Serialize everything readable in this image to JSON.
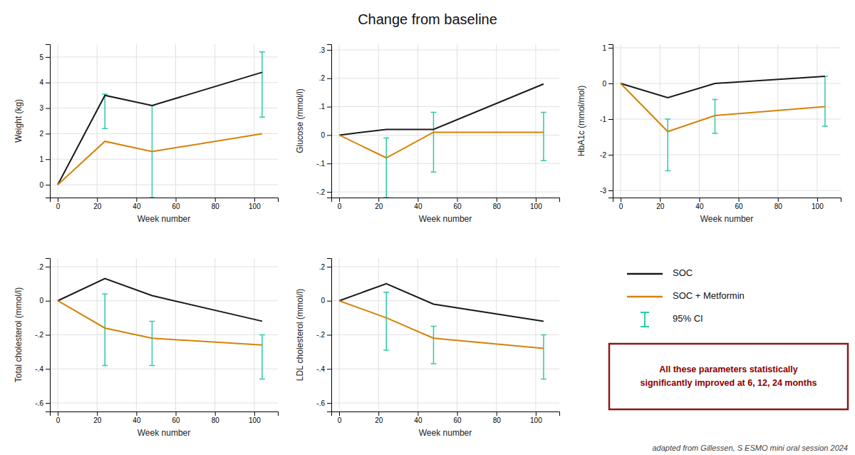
{
  "title": "Change from baseline",
  "legend": "lower right",
  "annotations": [
    "All these parameters statistically\nsignificantly improved at 6, 12, 24 months",
    "adapted from Gillessen, S ESMO mini oral session 2024"
  ],
  "chart_data": [
    {
      "type": "line",
      "y_label": "Weight (kg)",
      "x_label": "Week number",
      "x": [
        0,
        24,
        48,
        104
      ],
      "xlim": [
        -4,
        112
      ],
      "xticks": [
        0,
        20,
        40,
        60,
        80,
        100
      ],
      "ylim": [
        -0.5,
        5.5
      ],
      "yticks": [
        0,
        1,
        2,
        3,
        4,
        5
      ],
      "grid": true,
      "series": [
        {
          "name": "SOC",
          "color": "#1a1a1a",
          "values": [
            0.0,
            3.5,
            3.1,
            4.4
          ]
        },
        {
          "name": "SOC + Metformin",
          "color": "#d4820a",
          "values": [
            0.0,
            1.7,
            1.3,
            2.0
          ]
        },
        {
          "name": "95% CI",
          "type": "errorbar",
          "color": "#30c9a8",
          "values": [
            null,
            3.1,
            1.3,
            4.4
          ],
          "error_low": [
            null,
            0.9,
            1.8,
            1.75
          ],
          "error_high": [
            null,
            0.45,
            1.8,
            0.8
          ]
        }
      ]
    },
    {
      "type": "line",
      "y_label": "Glucose (mmol/l)",
      "x_label": "Week number",
      "x": [
        0,
        24,
        48,
        104
      ],
      "xlim": [
        -4,
        112
      ],
      "xticks": [
        0,
        20,
        40,
        60,
        80,
        100
      ],
      "ylim": [
        -0.22,
        0.32
      ],
      "yticks": [
        {
          "value": -0.2,
          "label": "-.2"
        },
        {
          "value": -0.1,
          "label": "-.1"
        },
        0,
        {
          "value": 0.1,
          "label": ".1"
        },
        {
          "value": 0.2,
          "label": ".2"
        },
        {
          "value": 0.3,
          "label": ".3"
        }
      ],
      "grid": true,
      "series": [
        {
          "name": "SOC",
          "color": "#1a1a1a",
          "values": [
            0.0,
            0.02,
            0.02,
            0.18
          ]
        },
        {
          "name": "SOC + Metformin",
          "color": "#d4820a",
          "values": [
            0.0,
            -0.08,
            0.01,
            0.01
          ]
        },
        {
          "name": "95% CI",
          "type": "errorbar",
          "color": "#30c9a8",
          "values": [
            null,
            -0.08,
            0.01,
            0.01
          ],
          "error_low": [
            null,
            0.14,
            0.14,
            0.1
          ],
          "error_high": [
            null,
            0.07,
            0.07,
            0.07
          ]
        }
      ]
    },
    {
      "type": "line",
      "y_label": "HbA1c (mmol/mol)",
      "x_label": "Week number",
      "x": [
        0,
        24,
        48,
        104
      ],
      "xlim": [
        -4,
        112
      ],
      "xticks": [
        0,
        20,
        40,
        60,
        80,
        100
      ],
      "ylim": [
        -3.2,
        1.1
      ],
      "yticks": [
        -3,
        -2,
        -1,
        0,
        1
      ],
      "grid": true,
      "series": [
        {
          "name": "SOC",
          "color": "#1a1a1a",
          "values": [
            0.0,
            -0.4,
            0.0,
            0.2
          ]
        },
        {
          "name": "SOC + Metformin",
          "color": "#d4820a",
          "values": [
            0.0,
            -1.35,
            -0.9,
            -0.65
          ]
        },
        {
          "name": "95% CI",
          "type": "errorbar",
          "color": "#30c9a8",
          "values": [
            null,
            -1.35,
            -0.9,
            -0.65
          ],
          "error_low": [
            null,
            1.1,
            0.5,
            0.55
          ],
          "error_high": [
            null,
            0.35,
            0.45,
            0.85
          ]
        }
      ]
    },
    {
      "type": "line",
      "y_label": "Total cholesterol (mmol/l)",
      "x_label": "Week number",
      "x": [
        0,
        24,
        48,
        104
      ],
      "xlim": [
        -4,
        112
      ],
      "xticks": [
        0,
        20,
        40,
        60,
        80,
        100
      ],
      "ylim": [
        -0.65,
        0.25
      ],
      "yticks": [
        {
          "value": -0.6,
          "label": "-.6"
        },
        {
          "value": -0.4,
          "label": "-.4"
        },
        {
          "value": -0.2,
          "label": "-.2"
        },
        0,
        {
          "value": 0.2,
          "label": ".2"
        }
      ],
      "grid": true,
      "series": [
        {
          "name": "SOC",
          "color": "#1a1a1a",
          "values": [
            0.0,
            0.13,
            0.03,
            -0.12
          ]
        },
        {
          "name": "SOC + Metformin",
          "color": "#d4820a",
          "values": [
            0.0,
            -0.16,
            -0.22,
            -0.26
          ]
        },
        {
          "name": "95% CI",
          "type": "errorbar",
          "color": "#30c9a8",
          "values": [
            null,
            -0.16,
            -0.22,
            -0.26
          ],
          "error_low": [
            null,
            0.22,
            0.16,
            0.2
          ],
          "error_high": [
            null,
            0.2,
            0.1,
            0.06
          ]
        }
      ]
    },
    {
      "type": "line",
      "y_label": "LDL cholesterol (mmol/l)",
      "x_label": "Week number",
      "x": [
        0,
        24,
        48,
        104
      ],
      "xlim": [
        -4,
        112
      ],
      "xticks": [
        0,
        20,
        40,
        60,
        80,
        100
      ],
      "ylim": [
        -0.65,
        0.25
      ],
      "yticks": [
        {
          "value": -0.6,
          "label": "-.6"
        },
        {
          "value": -0.4,
          "label": "-.4"
        },
        {
          "value": -0.2,
          "label": "-.2"
        },
        0,
        {
          "value": 0.2,
          "label": ".2"
        }
      ],
      "grid": true,
      "series": [
        {
          "name": "SOC",
          "color": "#1a1a1a",
          "values": [
            0.0,
            0.1,
            -0.02,
            -0.12
          ]
        },
        {
          "name": "SOC + Metformin",
          "color": "#d4820a",
          "values": [
            0.0,
            -0.1,
            -0.22,
            -0.28
          ]
        },
        {
          "name": "95% CI",
          "type": "errorbar",
          "color": "#30c9a8",
          "values": [
            null,
            -0.1,
            -0.22,
            -0.28
          ],
          "error_low": [
            null,
            0.19,
            0.15,
            0.18
          ],
          "error_high": [
            null,
            0.15,
            0.07,
            0.08
          ]
        }
      ]
    }
  ]
}
